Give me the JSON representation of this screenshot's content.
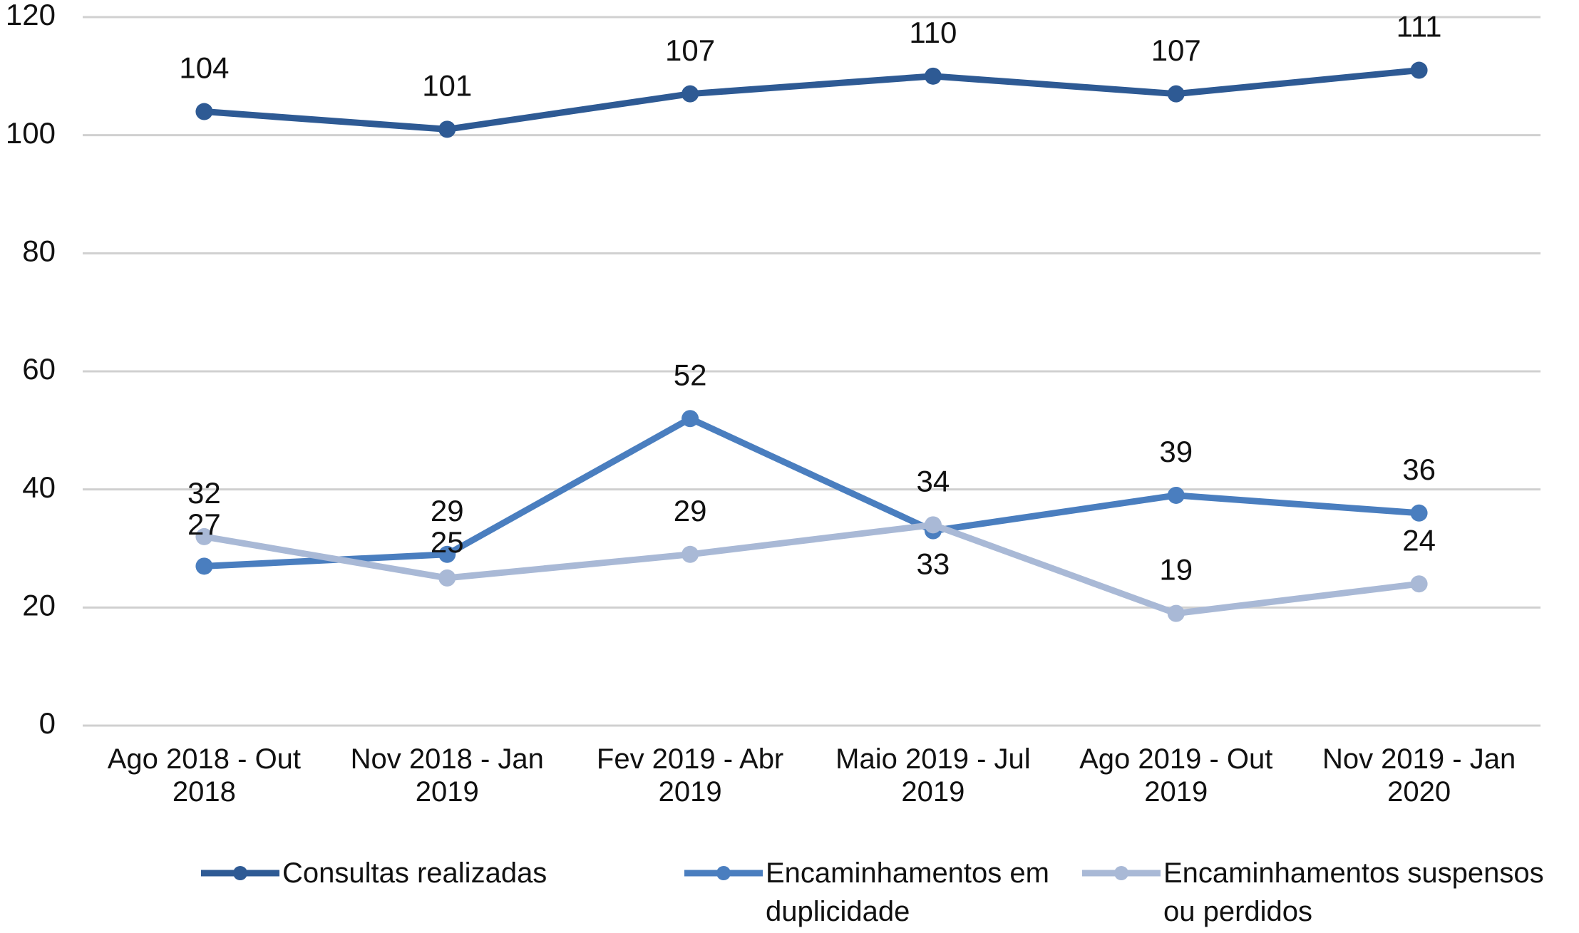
{
  "chart_data": {
    "type": "line",
    "categories": [
      "Ago 2018 - Out 2018",
      "Nov 2018 - Jan 2019",
      "Fev 2019 - Abr 2019",
      "Maio 2019 - Jul 2019",
      "Ago 2019 - Out 2019",
      "Nov 2019 - Jan 2020"
    ],
    "series": [
      {
        "name": "Consultas realizadas",
        "color": "#2e5a94",
        "values": [
          104,
          101,
          107,
          110,
          107,
          111
        ]
      },
      {
        "name": "Encaminhamentos em duplicidade",
        "color": "#4a7ebf",
        "values": [
          27,
          29,
          52,
          33,
          39,
          36
        ]
      },
      {
        "name": "Encaminhamentos suspensos ou perdidos",
        "color": "#a9b9d6",
        "values": [
          32,
          25,
          29,
          34,
          19,
          24
        ]
      }
    ],
    "ylim": [
      0,
      120
    ],
    "yticks": [
      0,
      20,
      40,
      60,
      80,
      100,
      120
    ],
    "grid": true,
    "legend": "bottom"
  }
}
